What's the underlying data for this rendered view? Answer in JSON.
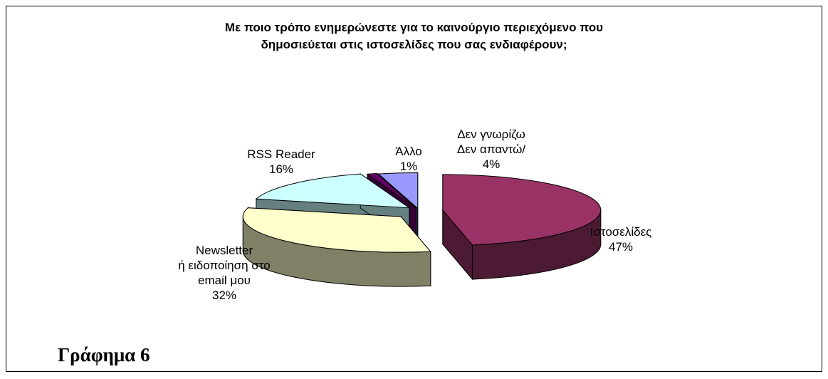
{
  "chart_data": {
    "type": "pie",
    "title_lines": [
      "Με ποιο τρόπο ενημερώνεστε για το καινούργιο περιεχόμενο που",
      "δημοσιεύεται στις ιστοσελίδες που σας ενδιαφέρουν;"
    ],
    "exploded": true,
    "three_d": true,
    "slices": [
      {
        "name_lines": [
          "Ιστοσελίδες"
        ],
        "value": 47,
        "label": "47%",
        "color": "#993366",
        "side_color": "#4d1a33"
      },
      {
        "name_lines": [
          "Newsletter",
          "ή ειδοποίηση στο",
          "email μου"
        ],
        "value": 32,
        "label": "32%",
        "color": "#ffffcc",
        "side_color": "#808066"
      },
      {
        "name_lines": [
          "RSS Reader"
        ],
        "value": 16,
        "label": "16%",
        "color": "#ccffff",
        "side_color": "#668080"
      },
      {
        "name_lines": [
          "Άλλο"
        ],
        "value": 1,
        "label": "1%",
        "color": "#660066",
        "side_color": "#330033"
      },
      {
        "name_lines": [
          "Δεν γνωρίζω",
          "Δεν απαντώ/"
        ],
        "value": 4,
        "label": "4%",
        "color": "#9999ff",
        "side_color": "#4d4d80"
      }
    ]
  },
  "caption": "Γράφημα 6"
}
